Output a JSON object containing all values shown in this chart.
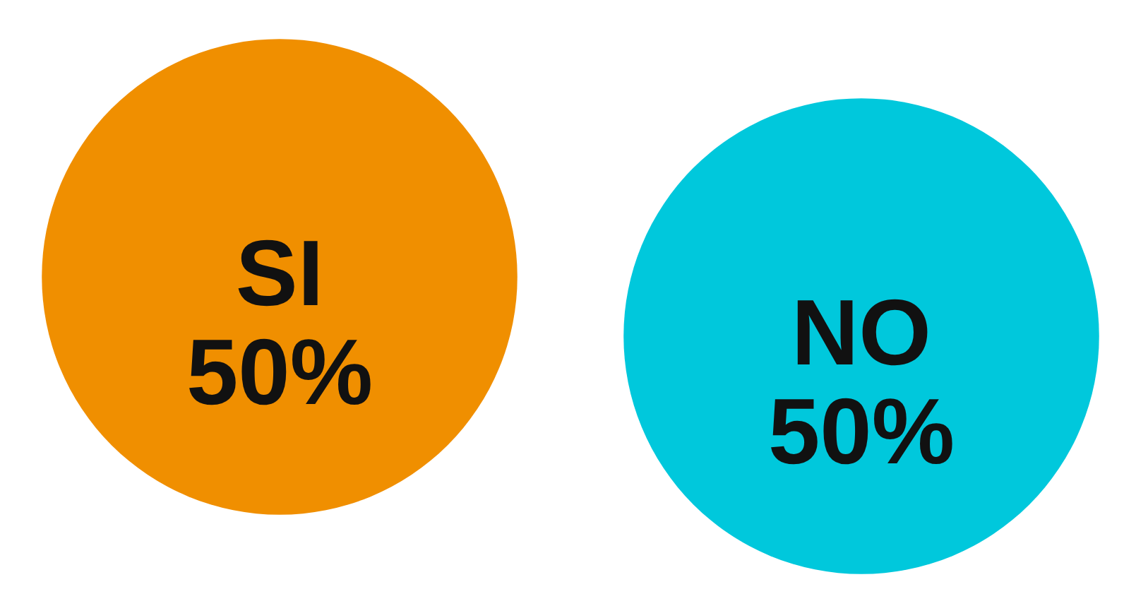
{
  "chart_data": {
    "type": "other",
    "categories": [
      "SI",
      "NO"
    ],
    "values": [
      50,
      50
    ],
    "value_labels": [
      "50%",
      "50%"
    ],
    "colors": [
      "#f08f00",
      "#00c8dc"
    ]
  }
}
